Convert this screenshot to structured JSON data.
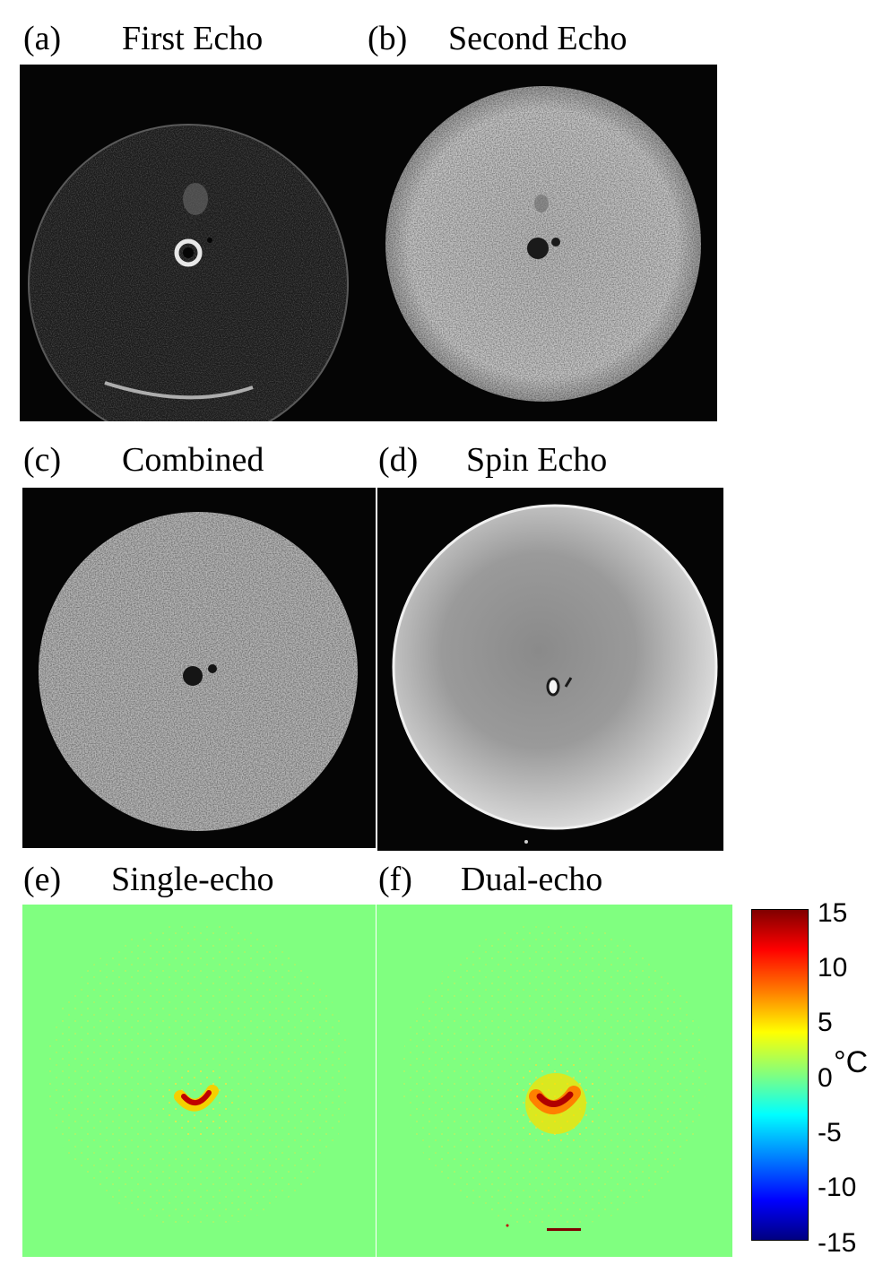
{
  "panels": {
    "a": {
      "letter": "(a)",
      "title": "First Echo"
    },
    "b": {
      "letter": "(b)",
      "title": "Second Echo"
    },
    "c": {
      "letter": "(c)",
      "title": "Combined"
    },
    "d": {
      "letter": "(d)",
      "title": "Spin Echo"
    },
    "e": {
      "letter": "(e)",
      "title": "Single-echo"
    },
    "f": {
      "letter": "(f)",
      "title": "Dual-echo"
    }
  },
  "colorbar": {
    "ticks": [
      "15",
      "10",
      "5",
      "0",
      "-5",
      "-10",
      "-15"
    ],
    "unit": "°C",
    "colors": [
      "#800000",
      "#ff0000",
      "#ff8000",
      "#ffff00",
      "#80ff80",
      "#00ffff",
      "#0080ff",
      "#0000ff",
      "#000080"
    ]
  },
  "colors": {
    "map_background": "#80ff80",
    "mri_background": "#000000"
  }
}
